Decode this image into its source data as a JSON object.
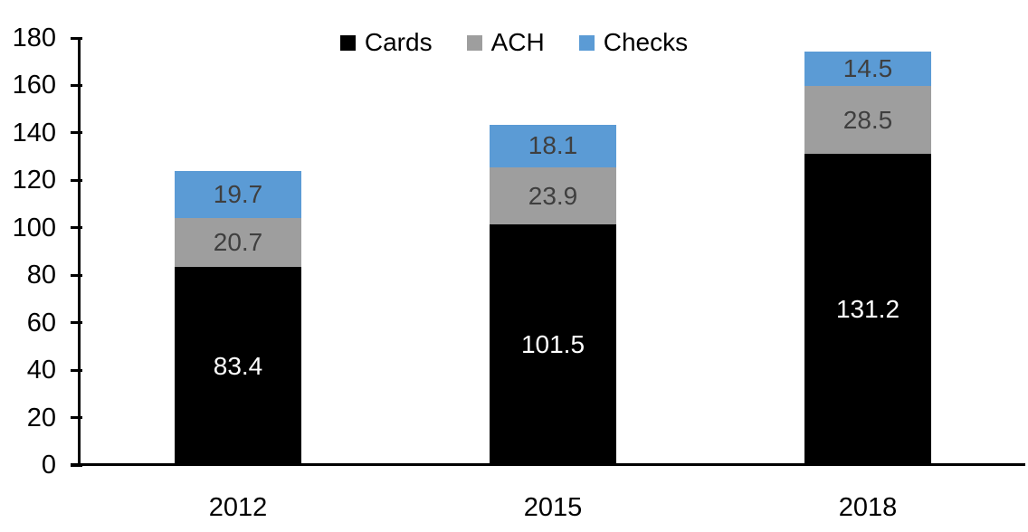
{
  "chart_data": {
    "type": "bar",
    "stacked": true,
    "title": "",
    "categories": [
      "2012",
      "2015",
      "2018"
    ],
    "series": [
      {
        "name": "Cards",
        "color": "#000000",
        "label_color": "#FFFFFF",
        "values": [
          83.4,
          101.5,
          131.2
        ]
      },
      {
        "name": "ACH",
        "color": "#9E9E9E",
        "label_color": "#3F3F3F",
        "values": [
          20.7,
          23.9,
          28.5
        ]
      },
      {
        "name": "Checks",
        "color": "#5B9BD5",
        "label_color": "#3F3F3F",
        "values": [
          19.7,
          18.1,
          14.5
        ]
      }
    ],
    "ylim": [
      0,
      180
    ],
    "ytick_step": 20,
    "ytick_labels": [
      "0",
      "20",
      "40",
      "60",
      "80",
      "100",
      "120",
      "140",
      "160",
      "180"
    ],
    "xlabel": "",
    "ylabel": "",
    "grid": false,
    "data_labels": true,
    "legend_position": "top-center",
    "axis_color": "#000000",
    "background_color": "#FFFFFF"
  }
}
